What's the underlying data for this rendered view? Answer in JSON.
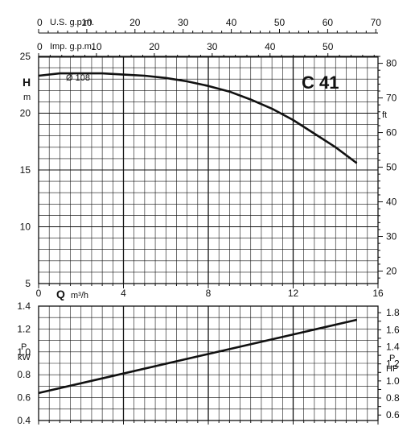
{
  "chart_data": [
    {
      "type": "line",
      "panel": "head",
      "model": "C 41",
      "ylabel": "H",
      "yunit": "m",
      "ylabel_right_unit": "ft",
      "ylim": [
        5,
        25
      ],
      "yticks": [
        5,
        10,
        15,
        20,
        25
      ],
      "ylim_right": [
        16.4,
        82.0
      ],
      "yticks_right": [
        20,
        30,
        40,
        50,
        60,
        70,
        80
      ],
      "xlim": [
        0,
        16
      ],
      "top_axes": [
        {
          "label": "U.S. g.p.m.",
          "ticks": [
            0,
            10,
            20,
            30,
            40,
            50,
            60,
            70
          ],
          "max": 70.45
        },
        {
          "label": "Imp. g.p.m.",
          "ticks": [
            0,
            10,
            20,
            30,
            40,
            50
          ],
          "max": 58.66
        }
      ],
      "grid": true,
      "series": [
        {
          "name": "Ø 108",
          "x": [
            0,
            1,
            2,
            3,
            4,
            5,
            6,
            7,
            8,
            9,
            10,
            11,
            12,
            13,
            14,
            15
          ],
          "y": [
            23.3,
            23.5,
            23.5,
            23.5,
            23.4,
            23.3,
            23.1,
            22.8,
            22.4,
            21.9,
            21.2,
            20.4,
            19.4,
            18.2,
            17.0,
            15.6
          ]
        }
      ]
    },
    {
      "type": "line",
      "panel": "power",
      "xlabel": "Q",
      "xunit": "m³/h",
      "xlim": [
        0,
        16
      ],
      "xticks": [
        0,
        4,
        8,
        12,
        16
      ],
      "ylabel": "P",
      "yunit": "kW",
      "ylim": [
        0.4,
        1.4
      ],
      "yticks": [
        0.4,
        0.6,
        0.8,
        1.0,
        1.2,
        1.4
      ],
      "ylabel_right": "P",
      "yunit_right": "HP",
      "ylim_right": [
        0.536,
        1.877
      ],
      "yticks_right": [
        0.6,
        0.8,
        1.0,
        1.2,
        1.4,
        1.6,
        1.8
      ],
      "grid": true,
      "series": [
        {
          "x": [
            0,
            15
          ],
          "y": [
            0.64,
            1.28
          ]
        }
      ]
    }
  ]
}
